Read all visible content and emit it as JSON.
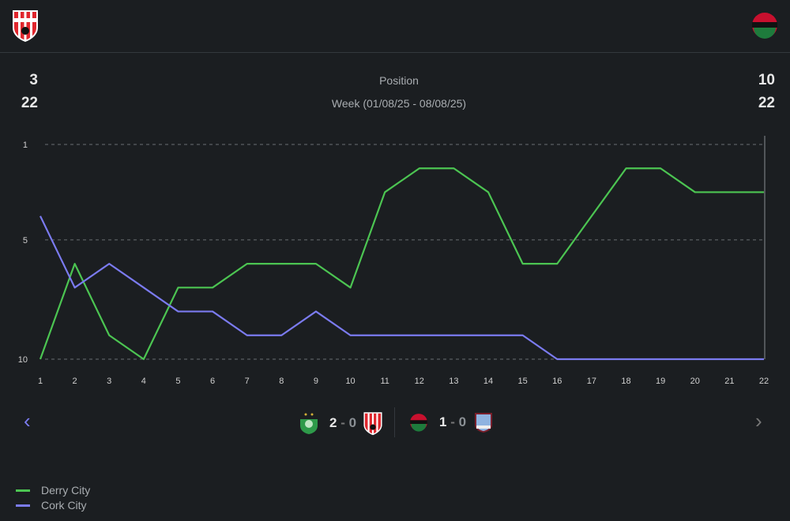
{
  "header": {
    "home_team": "Derry City",
    "away_team": "Cork City",
    "home_position": "3",
    "home_total": "22",
    "away_position": "10",
    "away_total": "22",
    "metric": "Position",
    "week": "Week (01/08/25 - 08/08/25)"
  },
  "matches": [
    {
      "home": "Shamrock Rovers",
      "home_score": "2",
      "sep": "-",
      "away_score": "0",
      "away": "Derry City"
    },
    {
      "home": "Cork City",
      "home_score": "1",
      "sep": "-",
      "away_score": "0",
      "away": "Galway United"
    }
  ],
  "nav": {
    "prev": "‹",
    "next": "›"
  },
  "colors": {
    "derry": "#4cc552",
    "cork": "#7b7bf0",
    "grid": "#777777",
    "background": "#1b1e21"
  },
  "chart_data": {
    "type": "line",
    "title": "Position",
    "x": [
      1,
      2,
      3,
      4,
      5,
      6,
      7,
      8,
      9,
      10,
      11,
      12,
      13,
      14,
      15,
      16,
      17,
      18,
      19,
      20,
      21,
      22
    ],
    "x_tick_labels": [
      "1",
      "2",
      "3",
      "4",
      "5",
      "6",
      "7",
      "8",
      "9",
      "10",
      "11",
      "12",
      "13",
      "14",
      "15",
      "16",
      "17",
      "18",
      "19",
      "20",
      "21",
      "22"
    ],
    "y_ticks": [
      1,
      5,
      10
    ],
    "y_tick_labels": [
      "1",
      "5",
      "10"
    ],
    "ylim": [
      1,
      10
    ],
    "y_inverted": true,
    "grid": "dashed horizontal at ticks",
    "legend_placement": "bottom-left",
    "series": [
      {
        "name": "Derry City",
        "color": "#4cc552",
        "values": [
          10,
          6,
          9,
          10,
          7,
          7,
          6,
          6,
          6,
          7,
          3,
          2,
          2,
          3,
          6,
          6,
          4,
          2,
          2,
          3,
          3,
          3
        ]
      },
      {
        "name": "Cork City",
        "color": "#7b7bf0",
        "values": [
          4,
          7,
          6,
          7,
          8,
          8,
          9,
          9,
          8,
          9,
          9,
          9,
          9,
          9,
          9,
          10,
          10,
          10,
          10,
          10,
          10,
          10
        ]
      }
    ]
  }
}
